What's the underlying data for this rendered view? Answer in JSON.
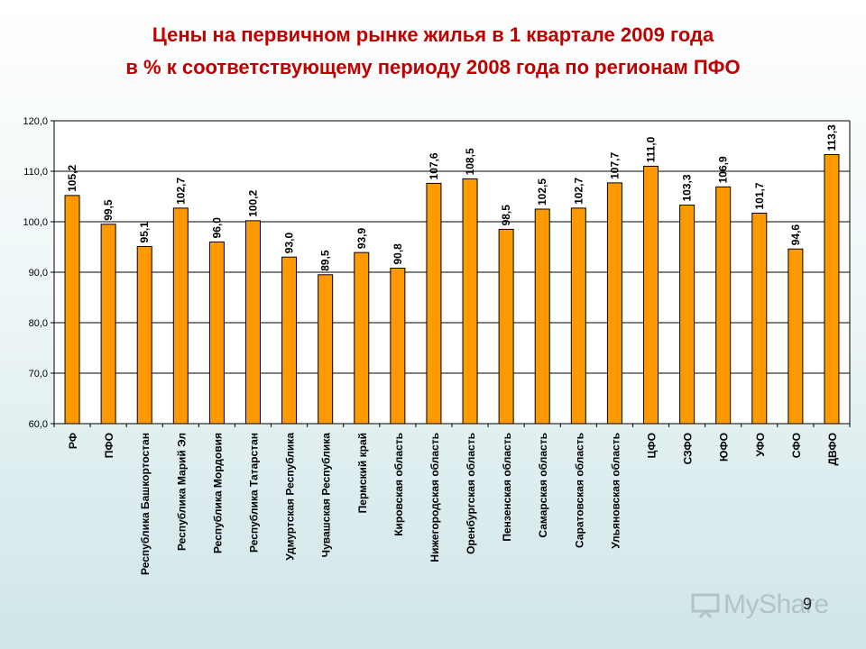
{
  "title_line1": "Цены на первичном рынке жилья в 1 квартале 2009 года",
  "title_line2": "в  % к  соответствующему периоду 2008 года по регионам ПФО",
  "page_number": "9",
  "watermark": "MyShare",
  "colors": {
    "bar": "#ff9900",
    "bar_stroke": "#000000",
    "title": "#c00000"
  },
  "chart_data": {
    "type": "bar",
    "title": "Цены на первичном рынке жилья в 1 квартале 2009 года в  % к  соответствующему периоду 2008 года по регионам ПФО",
    "xlabel": "",
    "ylabel": "",
    "ylim": [
      60,
      120
    ],
    "yticks": [
      "60,0",
      "70,0",
      "80,0",
      "90,0",
      "100,0",
      "110,0",
      "120,0"
    ],
    "grid": true,
    "legend": "none",
    "categories": [
      "РФ",
      "ПФО",
      "Республика Башкортостан",
      "Республика Марий Эл",
      "Республика Мордовия",
      "Республика Татарстан",
      "Удмуртская Республика",
      "Чувашская Республика",
      "Пермский край",
      "Кировская область",
      "Нижегородская область",
      "Оренбургская область",
      "Пензенская область",
      "Самарская область",
      "Саратовская область",
      "Ульяновская область",
      "ЦФО",
      "СЗФО",
      "ЮФО",
      "УФО",
      "СФО",
      "ДВФО"
    ],
    "values": [
      105.2,
      99.5,
      95.1,
      102.7,
      96.0,
      100.2,
      93.0,
      89.5,
      93.9,
      90.8,
      107.6,
      108.5,
      98.5,
      102.5,
      102.7,
      107.7,
      111.0,
      103.3,
      106.9,
      101.7,
      94.6,
      113.3
    ],
    "labels": [
      "105,2",
      "99,5",
      "95,1",
      "102,7",
      "96,0",
      "100,2",
      "93,0",
      "89,5",
      "93,9",
      "90,8",
      "107,6",
      "108,5",
      "98,5",
      "102,5",
      "102,7",
      "107,7",
      "111,0",
      "103,3",
      "106,9",
      "101,7",
      "94,6",
      "113,3"
    ]
  }
}
